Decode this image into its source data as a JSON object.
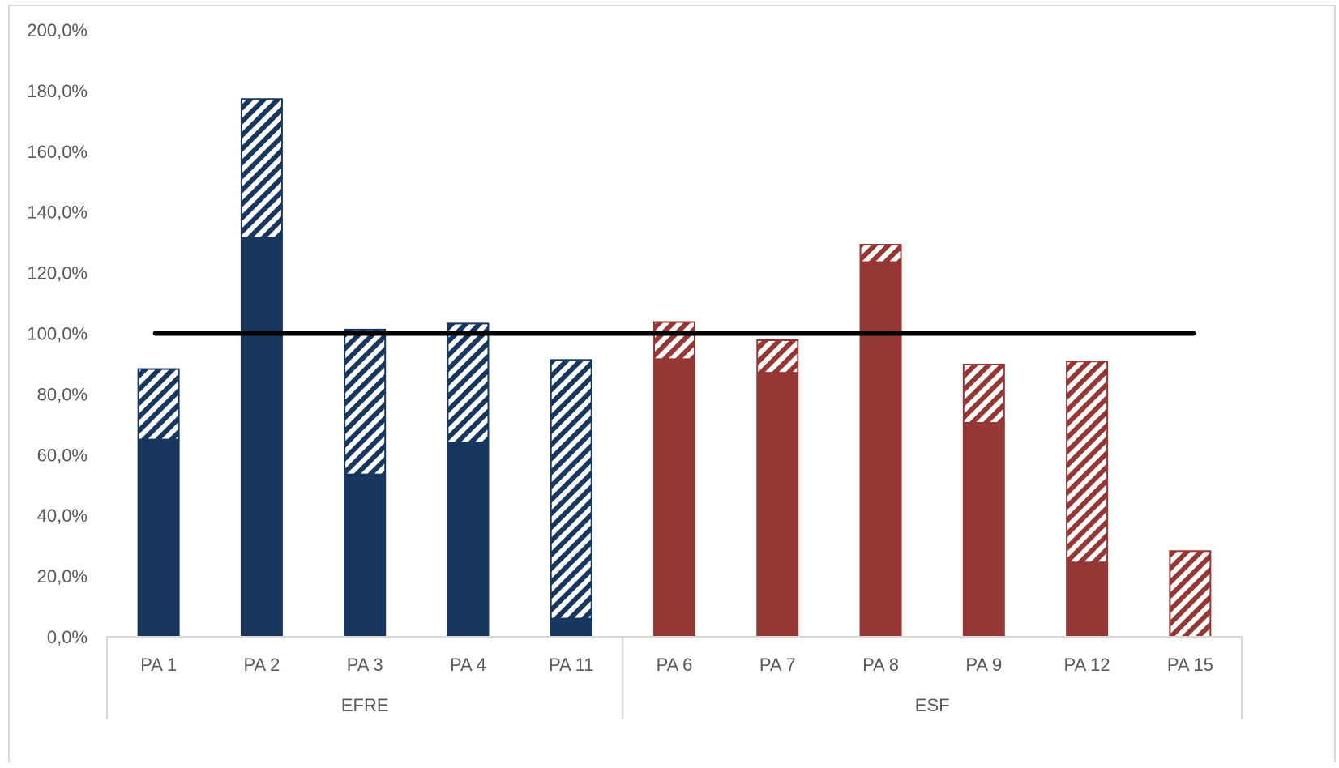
{
  "chart_data": {
    "type": "bar",
    "stacked": true,
    "title": "",
    "xlabel": "",
    "ylabel": "",
    "ylim": [
      0,
      200
    ],
    "y_ticks": [
      "0,0%",
      "20,0%",
      "40,0%",
      "60,0%",
      "80,0%",
      "100,0%",
      "120,0%",
      "140,0%",
      "160,0%",
      "180,0%",
      "200,0%"
    ],
    "grid": false,
    "legend": "none",
    "groups": [
      {
        "label": "EFRE",
        "categories": [
          "PA 1",
          "PA 2",
          "PA 3",
          "PA 4",
          "PA 11"
        ],
        "color": "#17375e"
      },
      {
        "label": "ESF",
        "categories": [
          "PA 6",
          "PA 7",
          "PA 8",
          "PA 9",
          "PA 12",
          "PA 15"
        ],
        "color": "#953735"
      }
    ],
    "categories": [
      "PA 1",
      "PA 2",
      "PA 3",
      "PA 4",
      "PA 11",
      "PA 6",
      "PA 7",
      "PA 8",
      "PA 9",
      "PA 12",
      "PA 15"
    ],
    "series": [
      {
        "fill": "solid",
        "values": [
          65.0,
          131.5,
          53.5,
          64.0,
          6.0,
          91.5,
          87.0,
          123.5,
          70.5,
          24.5,
          0.0
        ]
      },
      {
        "fill": "hatched",
        "values": [
          23.5,
          46.0,
          48.0,
          39.5,
          85.5,
          12.5,
          11.0,
          6.0,
          19.5,
          66.5,
          28.5
        ]
      }
    ],
    "reference_line": {
      "value": 100,
      "color": "#000000"
    }
  }
}
